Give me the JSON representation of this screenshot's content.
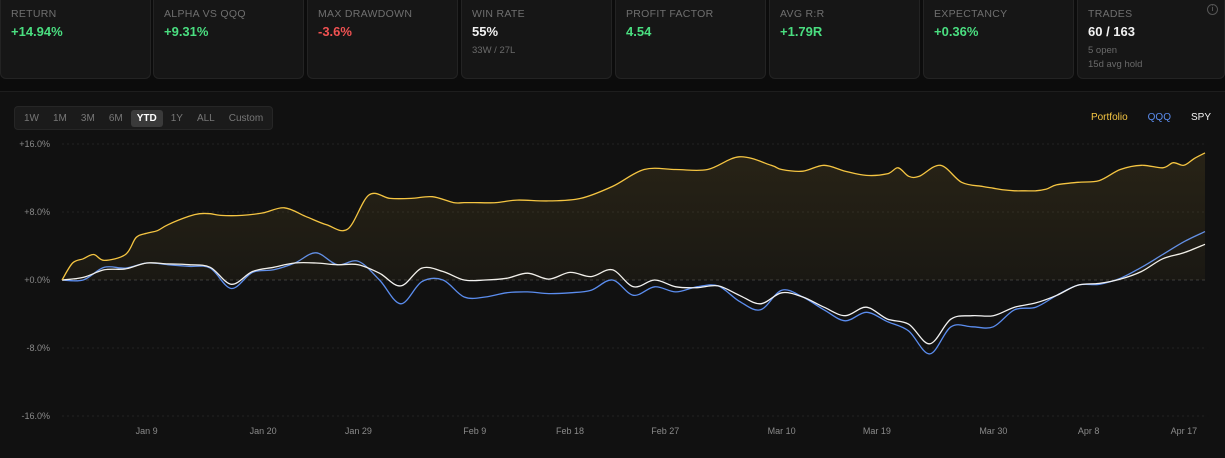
{
  "stats": [
    {
      "label": "RETURN",
      "value": "+14.94%",
      "tone": "pos"
    },
    {
      "label": "ALPHA VS QQQ",
      "value": "+9.31%",
      "tone": "pos"
    },
    {
      "label": "MAX DRAWDOWN",
      "value": "-3.6%",
      "tone": "neg"
    },
    {
      "label": "WIN RATE",
      "value": "55%",
      "tone": "neu",
      "sub": "33W / 27L"
    },
    {
      "label": "PROFIT FACTOR",
      "value": "4.54",
      "tone": "pos"
    },
    {
      "label": "AVG R:R",
      "value": "+1.79R",
      "tone": "pos"
    },
    {
      "label": "EXPECTANCY",
      "value": "+0.36%",
      "tone": "pos"
    },
    {
      "label": "TRADES",
      "value": "60 / 163",
      "tone": "neu",
      "sub": "5 open",
      "sub2": "15d avg hold"
    }
  ],
  "info_icon": "i",
  "ranges": [
    "1W",
    "1M",
    "3M",
    "6M",
    "YTD",
    "1Y",
    "ALL",
    "Custom"
  ],
  "active_range": "YTD",
  "legend": [
    {
      "label": "Portfolio",
      "color": "#f5c542"
    },
    {
      "label": "QQQ",
      "color": "#5b8def"
    },
    {
      "label": "SPY",
      "color": "#f2f2f2"
    }
  ],
  "chart_data": {
    "type": "line",
    "y_ticks": [
      "+16.0%",
      "+8.0%",
      "+0.0%",
      "-8.0%",
      "-16.0%"
    ],
    "ylim": [
      -16,
      16
    ],
    "x_ticks": [
      "Jan 9",
      "Jan 20",
      "Jan 29",
      "Feb 9",
      "Feb 18",
      "Feb 27",
      "Mar 10",
      "Mar 19",
      "Mar 30",
      "Apr 8",
      "Apr 17"
    ],
    "x_range": [
      "Jan 1",
      "Apr 17"
    ],
    "grid": "horizontal dashed",
    "legend_position": "top-right",
    "series": [
      {
        "name": "Portfolio",
        "color": "#f5c542",
        "fill": true,
        "x": [
          0,
          1,
          2,
          3,
          4,
          6,
          7,
          8,
          9,
          10,
          12,
          13,
          14,
          15,
          17,
          19,
          21,
          23,
          25,
          27,
          29,
          31,
          33,
          35,
          37,
          38,
          39,
          41,
          43,
          46,
          49,
          52,
          55,
          58,
          61,
          64,
          67,
          68,
          70,
          72,
          74,
          76,
          78,
          79,
          80,
          81,
          83,
          85,
          87,
          88,
          89,
          90,
          91,
          92,
          93,
          94,
          96,
          98,
          100,
          102,
          104,
          105,
          106,
          107,
          108
        ],
        "y": [
          0,
          2,
          2.5,
          3,
          2.3,
          3,
          5,
          5.5,
          5.8,
          6.5,
          7.5,
          7.8,
          7.8,
          7.6,
          7.6,
          7.9,
          8.5,
          7.5,
          6.5,
          6.0,
          10,
          9.6,
          9.6,
          9.8,
          9.1,
          9.1,
          9.1,
          9.1,
          9.4,
          9.3,
          9.6,
          11,
          13,
          13,
          13,
          14.5,
          13.5,
          13,
          12.8,
          13.5,
          12.8,
          12.3,
          12.5,
          13.2,
          12.2,
          12.2,
          13.5,
          11.5,
          11,
          10.8,
          10.6,
          10.5,
          10.5,
          10.5,
          10.7,
          11.2,
          11.5,
          11.7,
          13,
          13.5,
          13.2,
          13.8,
          13.5,
          14.3,
          14.95
        ]
      },
      {
        "name": "QQQ",
        "color": "#5b8def",
        "fill": false,
        "x": [
          0,
          2,
          4,
          6,
          8,
          10,
          12,
          14,
          16,
          18,
          20,
          22,
          24,
          26,
          28,
          30,
          32,
          34,
          36,
          38,
          40,
          42,
          44,
          46,
          48,
          50,
          52,
          54,
          56,
          58,
          60,
          62,
          64,
          66,
          68,
          70,
          72,
          74,
          76,
          78,
          80,
          82,
          84,
          86,
          88,
          90,
          92,
          94,
          96,
          98,
          100,
          102,
          104,
          106,
          108
        ],
        "y": [
          0,
          0,
          1.5,
          1.4,
          2,
          1.8,
          1.6,
          1.4,
          -1,
          0.9,
          1.2,
          2,
          3.2,
          1.8,
          2.2,
          0,
          -2.8,
          -0.2,
          0,
          -2,
          -2,
          -1.5,
          -1.4,
          -1.6,
          -1.5,
          -1.2,
          0,
          -1.8,
          -0.8,
          -1.4,
          -0.8,
          -0.7,
          -2.5,
          -3.5,
          -1.2,
          -2,
          -3.5,
          -4.8,
          -3.8,
          -4.9,
          -6,
          -8.7,
          -5.5,
          -5.5,
          -5.5,
          -3.5,
          -3.2,
          -1.8,
          -0.6,
          -0.5,
          0.2,
          1.5,
          3,
          4.5,
          5.7
        ]
      },
      {
        "name": "SPY",
        "color": "#f2f2f2",
        "fill": false,
        "x": [
          0,
          2,
          4,
          6,
          8,
          10,
          12,
          14,
          16,
          18,
          20,
          22,
          24,
          26,
          28,
          30,
          32,
          34,
          36,
          38,
          40,
          42,
          44,
          46,
          48,
          50,
          52,
          54,
          56,
          58,
          60,
          62,
          64,
          66,
          68,
          70,
          72,
          74,
          76,
          78,
          80,
          82,
          84,
          86,
          88,
          90,
          92,
          94,
          96,
          98,
          100,
          102,
          104,
          106,
          108
        ],
        "y": [
          0,
          0.3,
          1.2,
          1.3,
          2,
          1.9,
          1.8,
          1.5,
          -0.5,
          1,
          1.5,
          2,
          2,
          1.8,
          1.8,
          0.8,
          -0.7,
          1.4,
          1,
          0,
          0,
          0.2,
          0.8,
          0.1,
          0.9,
          0.4,
          1.2,
          -0.8,
          0,
          -0.8,
          -0.9,
          -0.7,
          -1.8,
          -2.8,
          -1.5,
          -2,
          -3.2,
          -4.2,
          -3.2,
          -4.6,
          -5.2,
          -7.5,
          -4.6,
          -4.2,
          -4.2,
          -3.2,
          -2.7,
          -1.8,
          -0.6,
          -0.4,
          0.1,
          1,
          2.5,
          3.2,
          4.2
        ]
      }
    ]
  }
}
